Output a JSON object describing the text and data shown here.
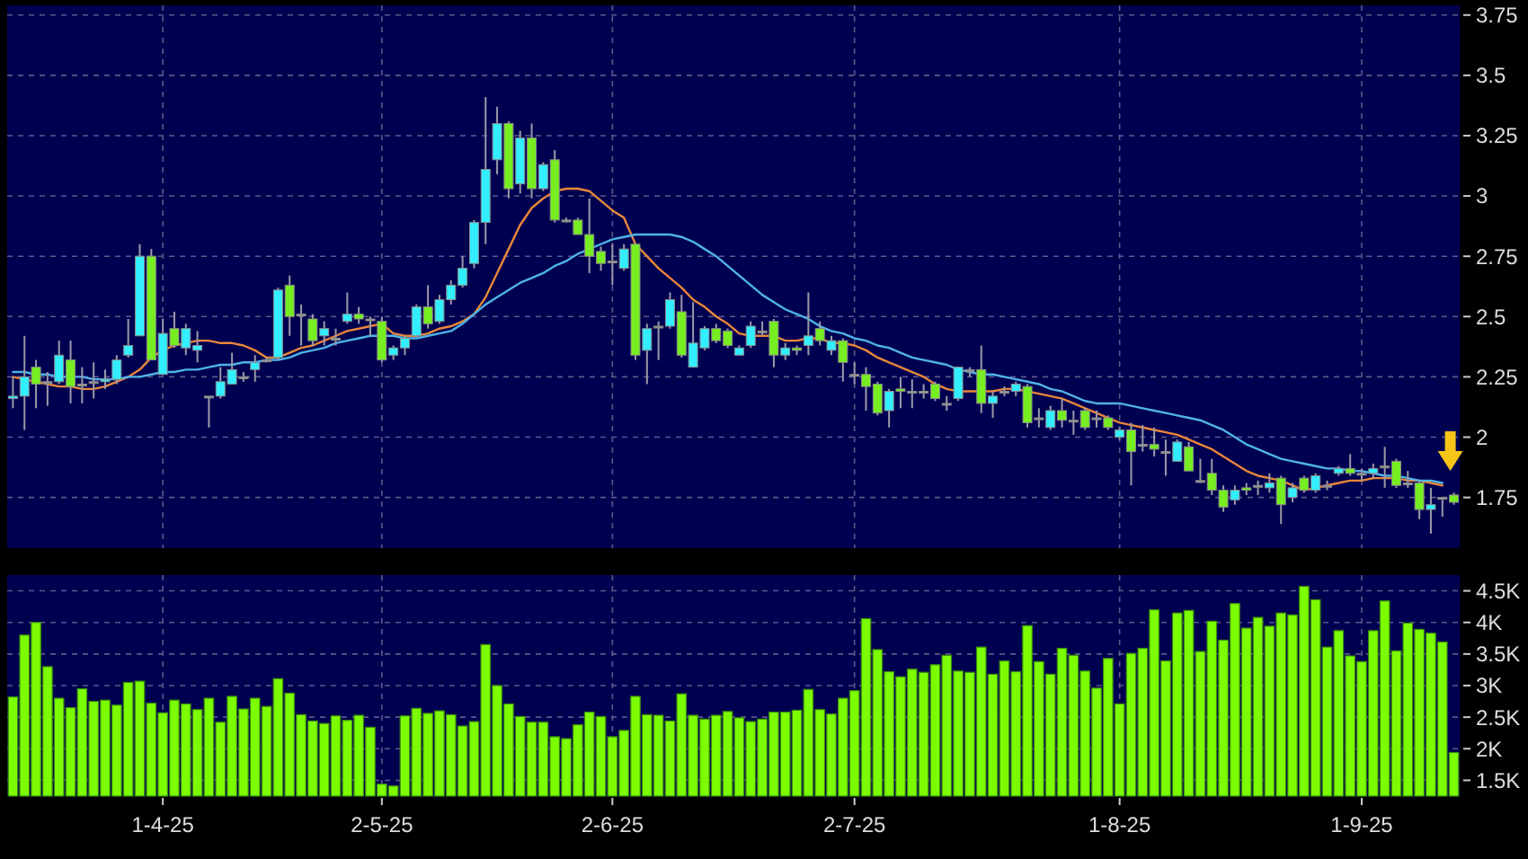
{
  "chart_data": [
    {
      "type": "candlestick",
      "categories": [
        null,
        null,
        null,
        null,
        null,
        null,
        null,
        null,
        null,
        null,
        null,
        null,
        null,
        null,
        null,
        null,
        null,
        null,
        null,
        null,
        null,
        null,
        null,
        null,
        null,
        null,
        null,
        null,
        null,
        null,
        null,
        null,
        null,
        null,
        null,
        null,
        null,
        null,
        null,
        null,
        null,
        null,
        null,
        null,
        null,
        null,
        null,
        null,
        null,
        null,
        null,
        null,
        null,
        null,
        null,
        null,
        null,
        null,
        null,
        null,
        null,
        null,
        null,
        null,
        null,
        null,
        null,
        null,
        null,
        null,
        null,
        null,
        null,
        null,
        null,
        null,
        null,
        null,
        null,
        null,
        null,
        null,
        null,
        null,
        null,
        null,
        null,
        null,
        null,
        null,
        null,
        null,
        null,
        null,
        null,
        null,
        null,
        null,
        null,
        null,
        null,
        null,
        null,
        null,
        null,
        null,
        null,
        null,
        null,
        null,
        null,
        null,
        null,
        null,
        null,
        null,
        null,
        null,
        null,
        null,
        null,
        null,
        null,
        null,
        null,
        null
      ],
      "ohlc": [
        [
          2.16,
          2.25,
          2.12,
          2.17
        ],
        [
          2.17,
          2.42,
          2.03,
          2.25
        ],
        [
          2.29,
          2.32,
          2.12,
          2.22
        ],
        [
          2.23,
          2.27,
          2.13,
          2.23
        ],
        [
          2.23,
          2.4,
          2.22,
          2.34
        ],
        [
          2.32,
          2.4,
          2.14,
          2.21
        ],
        [
          2.22,
          2.29,
          2.14,
          2.22
        ],
        [
          2.23,
          2.31,
          2.16,
          2.23
        ],
        [
          2.23,
          2.28,
          2.2,
          2.24
        ],
        [
          2.24,
          2.34,
          2.22,
          2.32
        ],
        [
          2.34,
          2.49,
          2.33,
          2.38
        ],
        [
          2.42,
          2.8,
          2.42,
          2.75
        ],
        [
          2.75,
          2.78,
          2.32,
          2.32
        ],
        [
          2.26,
          2.49,
          2.26,
          2.43
        ],
        [
          2.45,
          2.52,
          2.37,
          2.38
        ],
        [
          2.37,
          2.47,
          2.34,
          2.45
        ],
        [
          2.36,
          2.44,
          2.31,
          2.38
        ],
        [
          2.17,
          2.17,
          2.04,
          2.17
        ],
        [
          2.17,
          2.29,
          2.16,
          2.23
        ],
        [
          2.22,
          2.35,
          2.22,
          2.28
        ],
        [
          2.25,
          2.27,
          2.23,
          2.25
        ],
        [
          2.28,
          2.34,
          2.23,
          2.31
        ],
        [
          2.32,
          2.33,
          2.31,
          2.32
        ],
        [
          2.33,
          2.62,
          2.32,
          2.61
        ],
        [
          2.63,
          2.67,
          2.42,
          2.5
        ],
        [
          2.51,
          2.55,
          2.38,
          2.51
        ],
        [
          2.49,
          2.51,
          2.38,
          2.4
        ],
        [
          2.42,
          2.48,
          2.38,
          2.45
        ],
        [
          2.41,
          2.45,
          2.38,
          2.41
        ],
        [
          2.48,
          2.6,
          2.47,
          2.51
        ],
        [
          2.51,
          2.54,
          2.47,
          2.49
        ],
        [
          2.49,
          2.5,
          2.42,
          2.49
        ],
        [
          2.48,
          2.5,
          2.31,
          2.32
        ],
        [
          2.34,
          2.38,
          2.32,
          2.37
        ],
        [
          2.37,
          2.42,
          2.34,
          2.41
        ],
        [
          2.42,
          2.55,
          2.42,
          2.54
        ],
        [
          2.54,
          2.63,
          2.45,
          2.47
        ],
        [
          2.48,
          2.59,
          2.47,
          2.57
        ],
        [
          2.57,
          2.65,
          2.55,
          2.63
        ],
        [
          2.63,
          2.75,
          2.62,
          2.7
        ],
        [
          2.72,
          2.9,
          2.7,
          2.89
        ],
        [
          2.89,
          3.41,
          2.8,
          3.11
        ],
        [
          3.15,
          3.37,
          3.09,
          3.3
        ],
        [
          3.3,
          3.31,
          2.99,
          3.03
        ],
        [
          3.05,
          3.27,
          3.01,
          3.24
        ],
        [
          3.24,
          3.3,
          2.99,
          3.03
        ],
        [
          3.03,
          3.14,
          3.02,
          3.13
        ],
        [
          3.15,
          3.19,
          2.89,
          2.9
        ],
        [
          2.9,
          2.91,
          2.89,
          2.9
        ],
        [
          2.9,
          2.91,
          2.84,
          2.84
        ],
        [
          2.84,
          2.99,
          2.68,
          2.75
        ],
        [
          2.77,
          2.79,
          2.69,
          2.72
        ],
        [
          2.73,
          2.8,
          2.63,
          2.73
        ],
        [
          2.7,
          2.8,
          2.69,
          2.78
        ],
        [
          2.8,
          2.8,
          2.32,
          2.34
        ],
        [
          2.36,
          2.47,
          2.22,
          2.45
        ],
        [
          2.46,
          2.48,
          2.32,
          2.46
        ],
        [
          2.46,
          2.6,
          2.45,
          2.57
        ],
        [
          2.52,
          2.59,
          2.33,
          2.34
        ],
        [
          2.29,
          2.56,
          2.29,
          2.39
        ],
        [
          2.37,
          2.46,
          2.36,
          2.45
        ],
        [
          2.45,
          2.47,
          2.39,
          2.4
        ],
        [
          2.44,
          2.45,
          2.37,
          2.38
        ],
        [
          2.34,
          2.38,
          2.34,
          2.37
        ],
        [
          2.38,
          2.48,
          2.37,
          2.46
        ],
        [
          2.44,
          2.48,
          2.42,
          2.44
        ],
        [
          2.48,
          2.49,
          2.29,
          2.34
        ],
        [
          2.34,
          2.39,
          2.32,
          2.37
        ],
        [
          2.37,
          2.38,
          2.34,
          2.36
        ],
        [
          2.38,
          2.6,
          2.34,
          2.42
        ],
        [
          2.45,
          2.48,
          2.38,
          2.4
        ],
        [
          2.36,
          2.42,
          2.34,
          2.4
        ],
        [
          2.4,
          2.41,
          2.23,
          2.31
        ],
        [
          2.26,
          2.31,
          2.22,
          2.26
        ],
        [
          2.26,
          2.29,
          2.11,
          2.21
        ],
        [
          2.22,
          2.23,
          2.09,
          2.1
        ],
        [
          2.11,
          2.2,
          2.04,
          2.19
        ],
        [
          2.2,
          2.25,
          2.12,
          2.19
        ],
        [
          2.19,
          2.24,
          2.12,
          2.19
        ],
        [
          2.19,
          2.22,
          2.16,
          2.19
        ],
        [
          2.22,
          2.23,
          2.15,
          2.16
        ],
        [
          2.14,
          2.17,
          2.11,
          2.14
        ],
        [
          2.16,
          2.29,
          2.15,
          2.29
        ],
        [
          2.28,
          2.29,
          2.25,
          2.28
        ],
        [
          2.28,
          2.38,
          2.1,
          2.14
        ],
        [
          2.14,
          2.19,
          2.08,
          2.17
        ],
        [
          2.19,
          2.21,
          2.17,
          2.19
        ],
        [
          2.19,
          2.23,
          2.17,
          2.22
        ],
        [
          2.21,
          2.22,
          2.04,
          2.06
        ],
        [
          2.08,
          2.12,
          2.04,
          2.08
        ],
        [
          2.04,
          2.13,
          2.03,
          2.11
        ],
        [
          2.11,
          2.16,
          2.04,
          2.07
        ],
        [
          2.07,
          2.11,
          2.01,
          2.07
        ],
        [
          2.11,
          2.12,
          2.03,
          2.04
        ],
        [
          2.08,
          2.11,
          2.04,
          2.08
        ],
        [
          2.08,
          2.09,
          2.03,
          2.04
        ],
        [
          2.0,
          2.04,
          1.99,
          2.03
        ],
        [
          2.03,
          2.06,
          1.8,
          1.94
        ],
        [
          1.97,
          2.05,
          1.94,
          1.97
        ],
        [
          1.97,
          2.04,
          1.92,
          1.95
        ],
        [
          1.94,
          1.99,
          1.84,
          1.94
        ],
        [
          1.9,
          1.99,
          1.9,
          1.98
        ],
        [
          1.96,
          1.98,
          1.86,
          1.86
        ],
        [
          1.82,
          1.91,
          1.81,
          1.82
        ],
        [
          1.85,
          1.91,
          1.76,
          1.78
        ],
        [
          1.78,
          1.8,
          1.69,
          1.71
        ],
        [
          1.74,
          1.8,
          1.72,
          1.78
        ],
        [
          1.79,
          1.81,
          1.76,
          1.78
        ],
        [
          1.8,
          1.82,
          1.76,
          1.8
        ],
        [
          1.79,
          1.85,
          1.77,
          1.81
        ],
        [
          1.83,
          1.84,
          1.64,
          1.72
        ],
        [
          1.75,
          1.81,
          1.73,
          1.79
        ],
        [
          1.83,
          1.84,
          1.77,
          1.78
        ],
        [
          1.78,
          1.85,
          1.77,
          1.84
        ],
        [
          1.8,
          1.82,
          1.78,
          1.8
        ],
        [
          1.85,
          1.88,
          1.84,
          1.87
        ],
        [
          1.87,
          1.93,
          1.84,
          1.85
        ],
        [
          1.85,
          1.87,
          1.82,
          1.85
        ],
        [
          1.85,
          1.89,
          1.83,
          1.87
        ],
        [
          1.88,
          1.96,
          1.79,
          1.88
        ],
        [
          1.9,
          1.91,
          1.79,
          1.8
        ],
        [
          1.81,
          1.86,
          1.79,
          1.81
        ],
        [
          1.81,
          1.82,
          1.66,
          1.7
        ],
        [
          1.7,
          1.79,
          1.6,
          1.72
        ],
        [
          1.75,
          1.75,
          1.67,
          1.75
        ],
        [
          1.76,
          1.77,
          1.72,
          1.73
        ]
      ],
      "colors": [
        "#33eeff",
        "#33eeff",
        "#77ee22",
        "#999999",
        "#33eeff",
        "#77ee22",
        "#999999",
        "#999999",
        "#33eeff",
        "#33eeff",
        "#33eeff",
        "#33eeff",
        "#77ee22",
        "#33eeff",
        "#77ee22",
        "#33eeff",
        "#33eeff",
        "#999999",
        "#33eeff",
        "#33eeff",
        "#999999",
        "#33eeff",
        "#999999",
        "#33eeff",
        "#77ee22",
        "#999999",
        "#77ee22",
        "#33eeff",
        "#999999",
        "#33eeff",
        "#77ee22",
        "#999999",
        "#77ee22",
        "#33eeff",
        "#33eeff",
        "#33eeff",
        "#77ee22",
        "#33eeff",
        "#33eeff",
        "#33eeff",
        "#33eeff",
        "#33eeff",
        "#33eeff",
        "#77ee22",
        "#33eeff",
        "#77ee22",
        "#33eeff",
        "#77ee22",
        "#999999",
        "#77ee22",
        "#77ee22",
        "#77ee22",
        "#999999",
        "#33eeff",
        "#77ee22",
        "#33eeff",
        "#999999",
        "#33eeff",
        "#77ee22",
        "#33eeff",
        "#33eeff",
        "#77ee22",
        "#77ee22",
        "#33eeff",
        "#33eeff",
        "#999999",
        "#77ee22",
        "#33eeff",
        "#77ee22",
        "#33eeff",
        "#77ee22",
        "#33eeff",
        "#77ee22",
        "#999999",
        "#77ee22",
        "#77ee22",
        "#33eeff",
        "#77ee22",
        "#999999",
        "#999999",
        "#77ee22",
        "#999999",
        "#33eeff",
        "#999999",
        "#77ee22",
        "#33eeff",
        "#999999",
        "#33eeff",
        "#77ee22",
        "#999999",
        "#33eeff",
        "#77ee22",
        "#999999",
        "#77ee22",
        "#999999",
        "#77ee22",
        "#33eeff",
        "#77ee22",
        "#999999",
        "#77ee22",
        "#999999",
        "#33eeff",
        "#77ee22",
        "#999999",
        "#77ee22",
        "#77ee22",
        "#33eeff",
        "#77ee22",
        "#999999",
        "#33eeff",
        "#77ee22",
        "#33eeff",
        "#77ee22",
        "#33eeff",
        "#999999",
        "#33eeff",
        "#77ee22",
        "#999999",
        "#33eeff",
        "#999999",
        "#77ee22",
        "#999999",
        "#77ee22",
        "#33eeff",
        "#999999",
        "#77ee22"
      ],
      "series": [
        {
          "type": "line",
          "color": "#e8873a",
          "values": [
            2.25,
            2.24,
            2.23,
            2.22,
            2.21,
            2.21,
            2.2,
            2.2,
            2.21,
            2.23,
            2.25,
            2.28,
            2.33,
            2.36,
            2.38,
            2.39,
            2.4,
            2.4,
            2.39,
            2.39,
            2.38,
            2.36,
            2.33,
            2.33,
            2.35,
            2.37,
            2.38,
            2.4,
            2.42,
            2.44,
            2.45,
            2.46,
            2.47,
            2.43,
            2.42,
            2.42,
            2.43,
            2.45,
            2.46,
            2.48,
            2.51,
            2.58,
            2.68,
            2.78,
            2.88,
            2.95,
            2.99,
            3.02,
            3.03,
            3.03,
            3.02,
            2.98,
            2.94,
            2.91,
            2.8,
            2.75,
            2.7,
            2.66,
            2.62,
            2.57,
            2.54,
            2.5,
            2.47,
            2.43,
            2.42,
            2.42,
            2.42,
            2.4,
            2.4,
            2.41,
            2.41,
            2.39,
            2.39,
            2.38,
            2.36,
            2.33,
            2.31,
            2.29,
            2.27,
            2.25,
            2.22,
            2.2,
            2.19,
            2.19,
            2.19,
            2.19,
            2.2,
            2.2,
            2.19,
            2.18,
            2.17,
            2.16,
            2.14,
            2.12,
            2.1,
            2.08,
            2.06,
            2.05,
            2.04,
            2.03,
            2.02,
            2.01,
            1.99,
            1.97,
            1.95,
            1.92,
            1.89,
            1.86,
            1.84,
            1.83,
            1.82,
            1.8,
            1.78,
            1.79,
            1.8,
            1.81,
            1.82,
            1.82,
            1.83,
            1.83,
            1.83,
            1.82,
            1.82,
            1.81,
            1.8,
            null
          ]
        },
        {
          "type": "line",
          "color": "#4fb3e8",
          "values": [
            2.27,
            2.27,
            2.26,
            2.26,
            2.25,
            2.25,
            2.25,
            2.24,
            2.24,
            2.24,
            2.25,
            2.25,
            2.26,
            2.27,
            2.27,
            2.28,
            2.28,
            2.29,
            2.3,
            2.3,
            2.31,
            2.31,
            2.32,
            2.32,
            2.33,
            2.35,
            2.36,
            2.37,
            2.39,
            2.4,
            2.41,
            2.42,
            2.42,
            2.42,
            2.41,
            2.41,
            2.42,
            2.43,
            2.44,
            2.47,
            2.51,
            2.55,
            2.58,
            2.61,
            2.64,
            2.66,
            2.68,
            2.71,
            2.73,
            2.76,
            2.78,
            2.8,
            2.82,
            2.83,
            2.84,
            2.84,
            2.84,
            2.84,
            2.83,
            2.81,
            2.78,
            2.75,
            2.71,
            2.67,
            2.63,
            2.59,
            2.56,
            2.53,
            2.51,
            2.49,
            2.46,
            2.44,
            2.43,
            2.41,
            2.4,
            2.38,
            2.37,
            2.35,
            2.33,
            2.32,
            2.31,
            2.3,
            2.28,
            2.27,
            2.26,
            2.26,
            2.25,
            2.24,
            2.23,
            2.22,
            2.2,
            2.19,
            2.17,
            2.15,
            2.14,
            2.14,
            2.14,
            2.13,
            2.12,
            2.11,
            2.1,
            2.09,
            2.08,
            2.07,
            2.05,
            2.03,
            2.0,
            1.97,
            1.95,
            1.93,
            1.91,
            1.9,
            1.89,
            1.88,
            1.87,
            1.87,
            1.86,
            1.86,
            1.85,
            1.84,
            1.84,
            1.83,
            1.82,
            1.82,
            1.81,
            null
          ]
        }
      ],
      "ylim": [
        1.54,
        3.79
      ],
      "yticks": [
        1.75,
        2,
        2.25,
        2.5,
        2.75,
        3,
        3.25,
        3.5,
        3.75
      ],
      "grid": true,
      "tick_labels": "y"
    },
    {
      "type": "bar",
      "categories": [
        null,
        null,
        null,
        null,
        null,
        null,
        null,
        null,
        null,
        null,
        null,
        null,
        null,
        "1-4-25",
        null,
        null,
        null,
        null,
        null,
        null,
        null,
        null,
        null,
        null,
        null,
        null,
        null,
        null,
        null,
        null,
        null,
        null,
        "2-5-25",
        null,
        null,
        null,
        null,
        null,
        null,
        null,
        null,
        null,
        null,
        null,
        null,
        null,
        null,
        null,
        null,
        null,
        null,
        null,
        "2-6-25",
        null,
        null,
        null,
        null,
        null,
        null,
        null,
        null,
        null,
        null,
        null,
        null,
        null,
        null,
        null,
        null,
        null,
        null,
        null,
        null,
        "2-7-25",
        null,
        null,
        null,
        null,
        null,
        null,
        null,
        null,
        null,
        null,
        null,
        null,
        null,
        null,
        null,
        null,
        null,
        null,
        null,
        null,
        null,
        null,
        "1-8-25",
        null,
        null,
        null,
        null,
        null,
        null,
        null,
        null,
        null,
        null,
        null,
        null,
        null,
        null,
        null,
        null,
        null,
        null,
        null,
        null,
        "1-9-25",
        null,
        null,
        null,
        null,
        null,
        null,
        null,
        null
      ],
      "values": [
        2820,
        3800,
        4000,
        3300,
        2800,
        2650,
        2950,
        2750,
        2770,
        2690,
        3050,
        3070,
        2720,
        2570,
        2770,
        2710,
        2620,
        2800,
        2420,
        2830,
        2630,
        2800,
        2670,
        3110,
        2880,
        2540,
        2440,
        2400,
        2520,
        2450,
        2530,
        2340,
        1440,
        1410,
        2520,
        2640,
        2560,
        2600,
        2540,
        2360,
        2430,
        3650,
        3000,
        2710,
        2510,
        2420,
        2420,
        2190,
        2160,
        2380,
        2580,
        2510,
        2190,
        2290,
        2830,
        2540,
        2530,
        2440,
        2870,
        2530,
        2470,
        2530,
        2590,
        2490,
        2430,
        2470,
        2580,
        2580,
        2610,
        2940,
        2620,
        2550,
        2800,
        2920,
        4060,
        3570,
        3220,
        3140,
        3260,
        3210,
        3330,
        3480,
        3230,
        3210,
        3610,
        3180,
        3390,
        3220,
        3950,
        3380,
        3180,
        3590,
        3480,
        3230,
        2960,
        3430,
        2710,
        3510,
        3590,
        4200,
        3390,
        4150,
        4190,
        3540,
        4020,
        3720,
        4300,
        3910,
        4080,
        3940,
        4150,
        4120,
        4570,
        4360,
        3610,
        3870,
        3470,
        3380,
        3870,
        4340,
        3550,
        3990,
        3890,
        3830,
        3690,
        1940
      ],
      "color": "#7cfc00",
      "ylim": [
        1250,
        4750
      ],
      "yticks": [
        {
          "value": 1500,
          "label": "1.5K"
        },
        {
          "value": 2000,
          "label": "2K"
        },
        {
          "value": 2500,
          "label": "2.5K"
        },
        {
          "value": 3000,
          "label": "3K"
        },
        {
          "value": 3500,
          "label": "3.5K"
        },
        {
          "value": 4000,
          "label": "4K"
        },
        {
          "value": 4500,
          "label": "4.5K"
        }
      ],
      "grid": true
    }
  ]
}
